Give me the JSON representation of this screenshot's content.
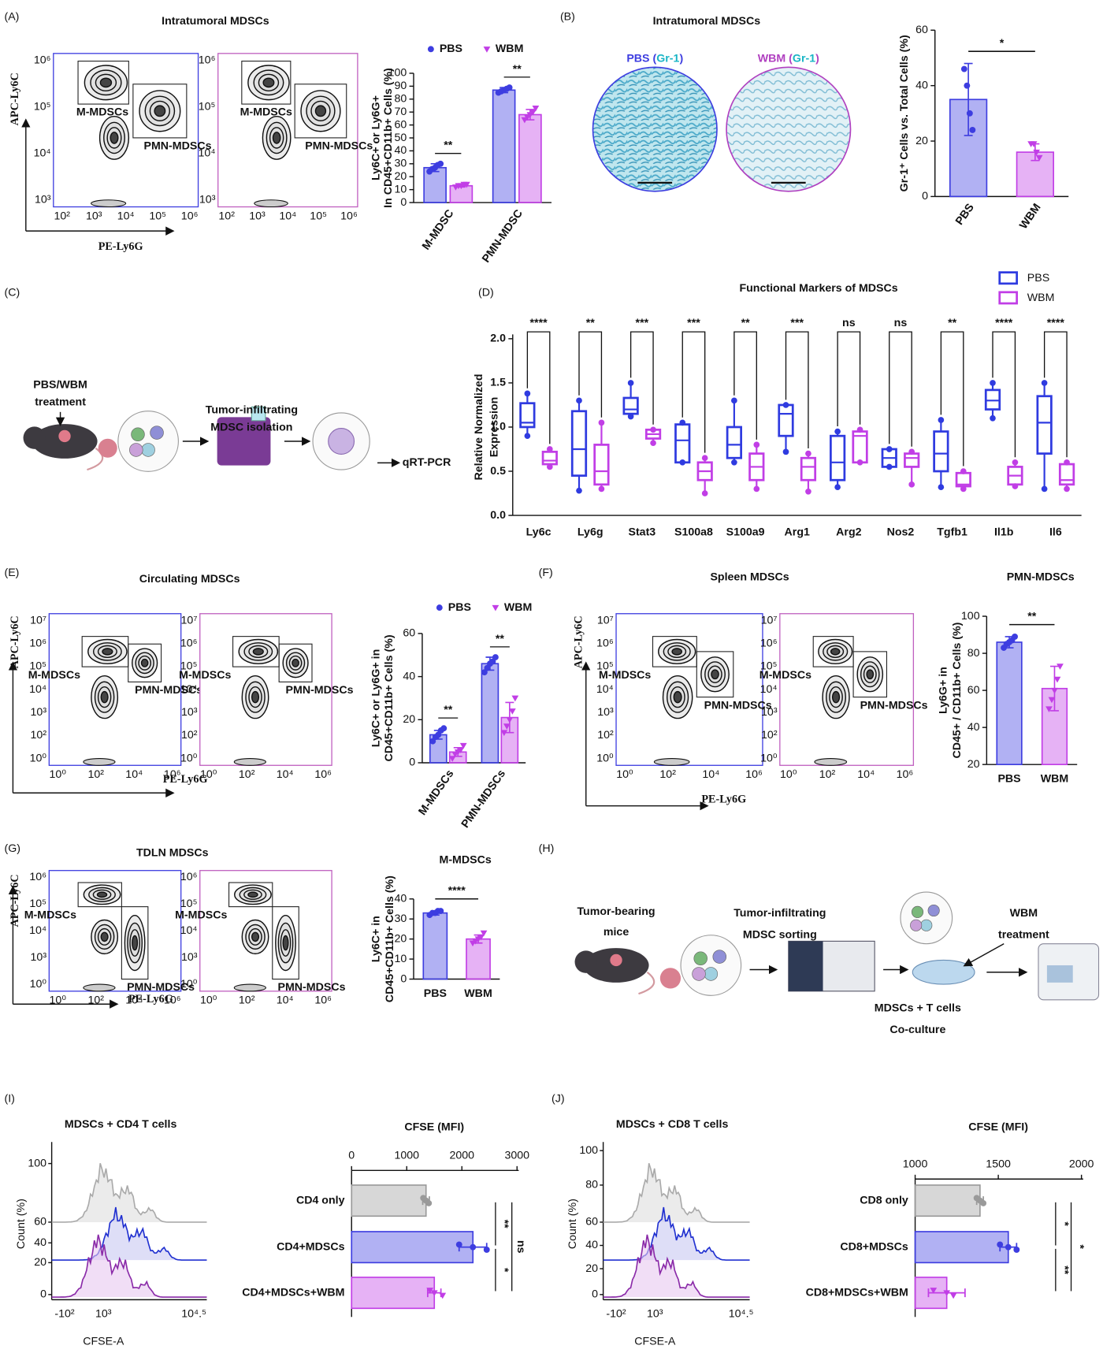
{
  "panel_labels": [
    "(A)",
    "(B)",
    "(C)",
    "(D)",
    "(E)",
    "(F)",
    "(G)",
    "(H)",
    "(I)",
    "(J)"
  ],
  "flow": [
    {
      "title": "Intratumoral MDSCs",
      "y_label": "APC-Ly6C",
      "x_label": "PE-Ly6G",
      "yticks": [
        "10³",
        "10⁴",
        "10⁵",
        "10⁶"
      ],
      "xticks": [
        "10²",
        "10³",
        "10⁴",
        "10⁵",
        "10⁶"
      ],
      "gates": [
        "M-MDSCs",
        "PMN-MDSCs"
      ]
    },
    {
      "title": "Circulating MDSCs",
      "y_label": "APC-Ly6C",
      "x_label": "PE-Ly6G",
      "yticks": [
        "10⁰",
        "10²",
        "10³",
        "10⁴",
        "10⁵",
        "10⁶",
        "10⁷"
      ],
      "xticks": [
        "10⁰",
        "10²",
        "10⁴",
        "10⁶"
      ],
      "gates": [
        "M-MDSCs",
        "PMN-MDSCs"
      ]
    },
    {
      "title": "Spleen MDSCs",
      "y_label": "APC-Ly6C",
      "x_label": "PE-Ly6G",
      "yticks": [
        "10⁰",
        "10²",
        "10³",
        "10⁴",
        "10⁵",
        "10⁶",
        "10⁷"
      ],
      "xticks": [
        "10⁰",
        "10²",
        "10⁴",
        "10⁶"
      ],
      "gates": [
        "M-MDSCs",
        "PMN-MDSCs"
      ]
    },
    {
      "title": "TDLN MDSCs",
      "y_label": "APC-Ly6C",
      "x_label": "PE-Ly6G",
      "yticks": [
        "10⁰",
        "10³",
        "10⁴",
        "10⁵",
        "10⁶"
      ],
      "xticks": [
        "10⁰",
        "10²",
        "10⁴",
        "10⁶"
      ],
      "gates": [
        "M-MDSCs",
        "PMN-MDSCs"
      ]
    }
  ],
  "images": {
    "title": "Intratumoral MDSCs",
    "stains": [
      [
        "PBS (",
        "Gr-1",
        ")"
      ],
      [
        "WBM (",
        "Gr-1",
        ")"
      ]
    ]
  },
  "diagrams": {
    "C": [
      [
        "PBS/WBM",
        "treatment"
      ],
      [
        "Tumor-infiltrating",
        "MDSC isolation"
      ],
      [
        "qRT-PCR"
      ]
    ],
    "H": [
      [
        "Tumor-bearing",
        "mice"
      ],
      [
        "Tumor-infiltrating",
        "MDSC sorting"
      ],
      [
        "WBM",
        "treatment"
      ],
      [
        "MDSCs + T cells",
        "Co-culture"
      ]
    ]
  },
  "histograms": [
    {
      "title": "MDSCs + CD4 T cells",
      "y_label": "Count (%)",
      "yticks": [
        0,
        20,
        40,
        60,
        100
      ],
      "xticks": [
        "-10²",
        "10³",
        "10⁴.⁵"
      ],
      "x_label": "CFSE-A"
    },
    {
      "title": "MDSCs + CD8 T cells",
      "y_label": "Count (%)",
      "yticks": [
        0,
        20,
        40,
        60,
        80,
        100
      ],
      "xticks": [
        "-10²",
        "10³",
        "10⁴.⁵"
      ],
      "x_label": "CFSE-A"
    }
  ],
  "chart_data": [
    {
      "type": "bar",
      "categories": [
        "M-MDSC",
        "PMN-MDSC"
      ],
      "ylabel": [
        "Ly6C+ or Ly6G+",
        "In CD45+CD11b+ Cells (%)"
      ],
      "ylim": [
        0,
        100
      ],
      "yticks": [
        0,
        10,
        20,
        30,
        40,
        50,
        60,
        70,
        80,
        90,
        100
      ],
      "series": [
        {
          "name": "PBS",
          "color": "#3d3de0",
          "values": [
            27,
            87
          ],
          "errors": [
            3,
            2
          ],
          "points": [
            [
              24,
              26,
              27,
              29,
              30
            ],
            [
              85,
              86,
              87,
              88,
              89
            ]
          ]
        },
        {
          "name": "WBM",
          "color": "#c13ee6",
          "values": [
            13,
            68
          ],
          "errors": [
            1,
            4
          ],
          "points": [
            [
              12,
              13,
              13,
              14,
              14
            ],
            [
              64,
              66,
              68,
              70,
              73
            ]
          ]
        }
      ],
      "significance": [
        "**",
        "**"
      ]
    },
    {
      "type": "bar",
      "categories": [
        "PBS",
        "WBM"
      ],
      "ylabel": "Gr-1⁺ Cells vs. Total Cells (%)",
      "ylim": [
        0,
        60
      ],
      "yticks": [
        0,
        20,
        40,
        60
      ],
      "values": [
        35,
        16
      ],
      "errors": [
        13,
        3
      ],
      "colors": [
        "#3d3de0",
        "#c13ee6"
      ],
      "points": [
        [
          46,
          40,
          30,
          24
        ],
        [
          19,
          19,
          16,
          14
        ]
      ],
      "significance": "*"
    },
    {
      "type": "box",
      "title": "Functional Markers of MDSCs",
      "ylabel": [
        "Relative Normalized",
        "Expression"
      ],
      "categories": [
        "Ly6c",
        "Ly6g",
        "Stat3",
        "S100a8",
        "S100a9",
        "Arg1",
        "Arg2",
        "Nos2",
        "Tgfb1",
        "Il1b",
        "Il6"
      ],
      "ylim": [
        0,
        2.0
      ],
      "yticks": [
        {
          "value": 0,
          "label": "0.0"
        },
        {
          "value": 0.5,
          "label": "0.5"
        },
        {
          "value": 1,
          "label": "1.0"
        },
        {
          "value": 1.5,
          "label": "1.5"
        },
        {
          "value": 2,
          "label": "2.0"
        }
      ],
      "series": [
        {
          "name": "PBS",
          "color": "#2f3be0",
          "stats": [
            [
              0.9,
              1.0,
              1.05,
              1.27,
              1.38
            ],
            [
              0.28,
              0.45,
              0.75,
              1.18,
              1.3
            ],
            [
              1.12,
              1.15,
              1.2,
              1.33,
              1.5
            ],
            [
              0.6,
              0.6,
              0.85,
              1.03,
              1.05
            ],
            [
              0.6,
              0.65,
              0.8,
              1.0,
              1.3
            ],
            [
              0.72,
              0.9,
              1.15,
              1.25,
              1.25
            ],
            [
              0.32,
              0.4,
              0.6,
              0.9,
              0.95
            ],
            [
              0.55,
              0.55,
              0.65,
              0.75,
              0.75
            ],
            [
              0.32,
              0.5,
              0.7,
              0.95,
              1.08
            ],
            [
              1.1,
              1.2,
              1.3,
              1.42,
              1.5
            ],
            [
              0.3,
              0.7,
              1.05,
              1.35,
              1.5
            ]
          ]
        },
        {
          "name": "WBM",
          "color": "#c13ee6",
          "stats": [
            [
              0.55,
              0.58,
              0.62,
              0.72,
              0.75
            ],
            [
              0.3,
              0.35,
              0.5,
              0.8,
              1.05
            ],
            [
              0.82,
              0.87,
              0.92,
              0.97,
              0.97
            ],
            [
              0.25,
              0.4,
              0.5,
              0.6,
              0.65
            ],
            [
              0.3,
              0.4,
              0.55,
              0.7,
              0.8
            ],
            [
              0.27,
              0.4,
              0.55,
              0.65,
              0.7
            ],
            [
              0.6,
              0.6,
              0.9,
              0.95,
              0.97
            ],
            [
              0.35,
              0.55,
              0.65,
              0.7,
              0.72
            ],
            [
              0.3,
              0.33,
              0.35,
              0.48,
              0.5
            ],
            [
              0.33,
              0.35,
              0.45,
              0.55,
              0.6
            ],
            [
              0.3,
              0.35,
              0.4,
              0.58,
              0.6
            ]
          ]
        }
      ],
      "significance": [
        "****",
        "**",
        "***",
        "***",
        "**",
        "***",
        "ns",
        "ns",
        "**",
        "****",
        "****"
      ]
    },
    {
      "type": "bar",
      "categories": [
        "M-MDSCs",
        "PMN-MDSCs"
      ],
      "ylabel": [
        "Ly6C+ or Ly6G+ in",
        "CD45+CD11b+ Cells (%)"
      ],
      "ylim": [
        0,
        60
      ],
      "yticks": [
        0,
        20,
        40,
        60
      ],
      "series": [
        {
          "name": "PBS",
          "color": "#3d3de0",
          "values": [
            13,
            46
          ],
          "errors": [
            2,
            3
          ],
          "points": [
            [
              10,
              12,
              13,
              15,
              16
            ],
            [
              42,
              44,
              46,
              47,
              49
            ]
          ]
        },
        {
          "name": "WBM",
          "color": "#c13ee6",
          "values": [
            5,
            21
          ],
          "errors": [
            2,
            7
          ],
          "points": [
            [
              2,
              4,
              5,
              6,
              8
            ],
            [
              14,
              17,
              20,
              24,
              30
            ]
          ]
        }
      ],
      "significance": [
        "**",
        "**"
      ]
    },
    {
      "type": "bar",
      "title": "PMN-MDSCs",
      "categories": [
        "PBS",
        "WBM"
      ],
      "ylabel": [
        "Ly6G+ in",
        "CD45+ / CD11b+ Cells (%)"
      ],
      "ylim": [
        20,
        100
      ],
      "yticks": [
        20,
        40,
        60,
        80,
        100
      ],
      "values": [
        86,
        61
      ],
      "errors": [
        3,
        12
      ],
      "colors": [
        "#3d3de0",
        "#c13ee6"
      ],
      "points": [
        [
          83,
          85,
          86,
          87,
          89
        ],
        [
          50,
          55,
          60,
          66,
          73
        ]
      ],
      "significance": "**"
    },
    {
      "type": "bar",
      "title": "M-MDSCs",
      "categories": [
        "PBS",
        "WBM"
      ],
      "ylabel": [
        "Ly6C+ in",
        "CD45+CD11b+ Cells (%)"
      ],
      "ylim": [
        0,
        40
      ],
      "yticks": [
        0,
        10,
        20,
        30,
        40
      ],
      "values": [
        33,
        20
      ],
      "errors": [
        1,
        2
      ],
      "colors": [
        "#3d3de0",
        "#c13ee6"
      ],
      "points": [
        [
          32,
          33,
          33,
          34,
          34
        ],
        [
          18,
          19,
          20,
          21,
          23
        ]
      ],
      "significance": "****"
    },
    {
      "type": "barh",
      "title": "CFSE (MFI)",
      "categories": [
        "CD4 only",
        "CD4+MDSCs",
        "CD4+MDSCs+WBM"
      ],
      "xlim": [
        0,
        3000
      ],
      "xticks": [
        0,
        1000,
        2000,
        3000
      ],
      "values": [
        1350,
        2200,
        1500
      ],
      "errors": [
        60,
        250,
        120
      ],
      "colors": [
        "#9a9a9a",
        "#3d3de0",
        "#c13ee6"
      ],
      "points": [
        [
          1300,
          1350,
          1400
        ],
        [
          1950,
          2200,
          2450
        ],
        [
          1420,
          1500,
          1650
        ]
      ],
      "significance": [
        "**",
        "*",
        "ns"
      ]
    },
    {
      "type": "barh",
      "title": "CFSE (MFI)",
      "categories": [
        "CD8 only",
        "CD8+MDSCs",
        "CD8+MDSCs+WBM"
      ],
      "xlim": [
        1000,
        2000
      ],
      "xticks": [
        1000,
        1500,
        2000
      ],
      "values": [
        1390,
        1560,
        1190
      ],
      "errors": [
        20,
        50,
        110
      ],
      "colors": [
        "#9a9a9a",
        "#3d3de0",
        "#c13ee6"
      ],
      "points": [
        [
          1370,
          1390,
          1410
        ],
        [
          1510,
          1560,
          1610
        ],
        [
          1110,
          1190,
          1230
        ]
      ],
      "significance": [
        "*",
        "**",
        "*"
      ]
    }
  ]
}
